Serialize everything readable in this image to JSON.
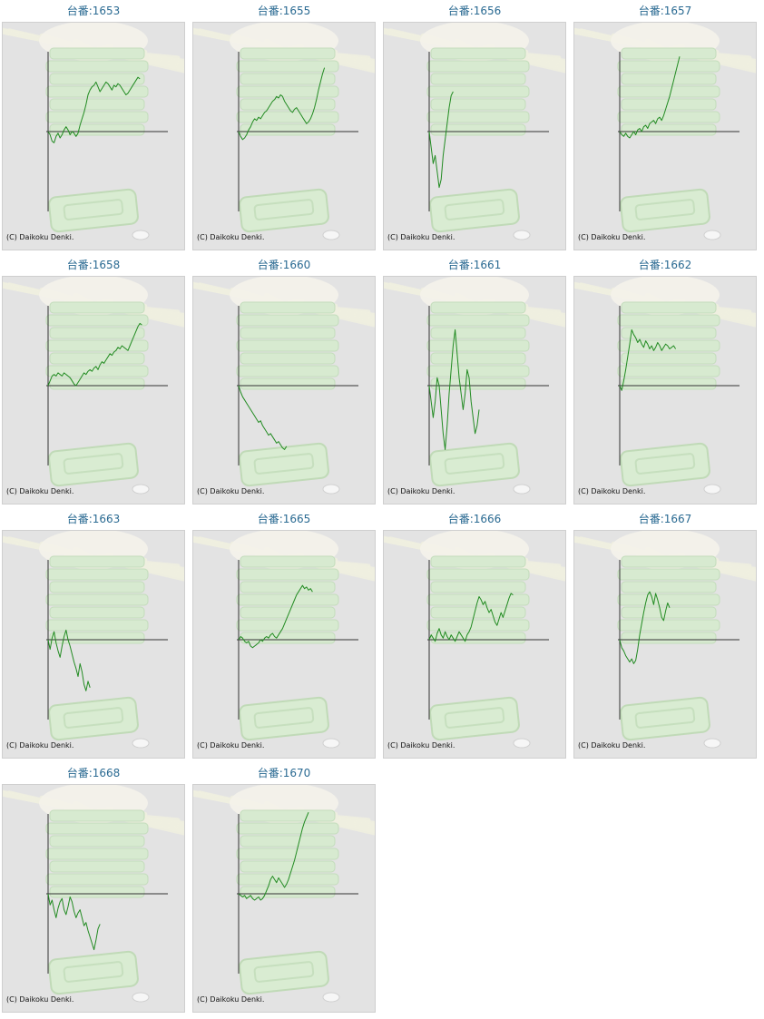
{
  "chart_data": [
    {
      "type": "line",
      "title": "台番:1653",
      "footer": "(C) Daikoku Denki.",
      "series": [
        {
          "color": "#228b22",
          "values": [
            0,
            -4,
            -12,
            -14,
            -6,
            -2,
            -8,
            -4,
            2,
            6,
            2,
            -4,
            0,
            -2,
            -6,
            -2,
            8,
            16,
            24,
            34,
            46,
            52,
            56,
            58,
            62,
            56,
            50,
            54,
            58,
            62,
            60,
            56,
            52,
            58,
            56,
            60,
            58,
            54,
            50,
            46,
            48,
            52,
            56,
            60,
            64,
            68,
            66
          ]
        }
      ]
    },
    {
      "type": "line",
      "title": "台番:1655",
      "footer": "(C) Daikoku Denki.",
      "series": [
        {
          "color": "#228b22",
          "values": [
            0,
            -6,
            -10,
            -8,
            -4,
            2,
            6,
            12,
            16,
            14,
            18,
            16,
            20,
            24,
            26,
            30,
            34,
            38,
            40,
            44,
            42,
            46,
            44,
            38,
            34,
            30,
            26,
            24,
            28,
            30,
            26,
            22,
            18,
            14,
            10,
            12,
            16,
            22,
            30,
            40,
            52,
            62,
            72,
            80
          ]
        }
      ]
    },
    {
      "type": "line",
      "title": "台番:1656",
      "footer": "(C) Daikoku Denki.",
      "series": [
        {
          "color": "#228b22",
          "values": [
            0,
            -20,
            -40,
            -30,
            -50,
            -70,
            -60,
            -30,
            -10,
            10,
            30,
            45,
            50
          ]
        }
      ]
    },
    {
      "type": "line",
      "title": "台番:1657",
      "footer": "(C) Daikoku Denki.",
      "series": [
        {
          "color": "#228b22",
          "values": [
            0,
            -4,
            -6,
            -2,
            -6,
            -8,
            -4,
            0,
            -4,
            2,
            4,
            0,
            6,
            8,
            4,
            10,
            12,
            14,
            10,
            16,
            18,
            14,
            20,
            28,
            36,
            44,
            54,
            64,
            74,
            84,
            94
          ]
        }
      ]
    },
    {
      "type": "line",
      "title": "台番:1658",
      "footer": "(C) Daikoku Denki.",
      "series": [
        {
          "color": "#228b22",
          "values": [
            0,
            6,
            12,
            14,
            12,
            16,
            14,
            12,
            16,
            14,
            12,
            10,
            6,
            2,
            0,
            4,
            8,
            12,
            16,
            14,
            18,
            20,
            18,
            22,
            24,
            20,
            26,
            30,
            28,
            32,
            36,
            40,
            38,
            42,
            44,
            48,
            46,
            50,
            48,
            46,
            44,
            50,
            56,
            62,
            68,
            74,
            78,
            76
          ]
        }
      ]
    },
    {
      "type": "line",
      "title": "台番:1660",
      "footer": "(C) Daikoku Denki.",
      "series": [
        {
          "color": "#228b22",
          "values": [
            0,
            -8,
            -14,
            -18,
            -22,
            -26,
            -30,
            -34,
            -38,
            -42,
            -46,
            -44,
            -50,
            -54,
            -58,
            -62,
            -60,
            -64,
            -68,
            -72,
            -70,
            -74,
            -78,
            -80,
            -76
          ]
        }
      ]
    },
    {
      "type": "line",
      "title": "台番:1661",
      "footer": "(C) Daikoku Denki.",
      "series": [
        {
          "color": "#228b22",
          "values": [
            0,
            -20,
            -40,
            -20,
            10,
            0,
            -30,
            -60,
            -80,
            -50,
            -10,
            20,
            50,
            70,
            40,
            10,
            -10,
            -30,
            -10,
            20,
            10,
            -20,
            -40,
            -60,
            -50,
            -30
          ]
        }
      ]
    },
    {
      "type": "line",
      "title": "台番:1662",
      "footer": "(C) Daikoku Denki.",
      "series": [
        {
          "color": "#228b22",
          "values": [
            0,
            -6,
            6,
            20,
            36,
            52,
            70,
            64,
            60,
            54,
            58,
            52,
            48,
            56,
            52,
            46,
            50,
            44,
            48,
            54,
            50,
            44,
            48,
            52,
            50,
            46,
            48,
            50,
            46
          ]
        }
      ]
    },
    {
      "type": "line",
      "title": "台番:1663",
      "footer": "(C) Daikoku Denki.",
      "series": [
        {
          "color": "#228b22",
          "values": [
            0,
            -12,
            2,
            10,
            -4,
            -14,
            -22,
            -8,
            4,
            12,
            0,
            -8,
            -18,
            -28,
            -36,
            -46,
            -30,
            -40,
            -56,
            -64,
            -52,
            -60
          ]
        }
      ]
    },
    {
      "type": "line",
      "title": "台番:1665",
      "footer": "(C) Daikoku Denki.",
      "series": [
        {
          "color": "#228b22",
          "values": [
            0,
            4,
            2,
            -2,
            -4,
            -2,
            -8,
            -10,
            -8,
            -6,
            -4,
            0,
            -2,
            2,
            4,
            2,
            6,
            8,
            4,
            2,
            6,
            10,
            14,
            20,
            26,
            32,
            38,
            44,
            50,
            56,
            60,
            64,
            68,
            64,
            66,
            62,
            64,
            60
          ]
        }
      ]
    },
    {
      "type": "line",
      "title": "台番:1666",
      "footer": "(C) Daikoku Denki.",
      "series": [
        {
          "color": "#228b22",
          "values": [
            0,
            6,
            2,
            -2,
            8,
            14,
            6,
            2,
            10,
            4,
            0,
            6,
            2,
            -2,
            4,
            10,
            6,
            2,
            -2,
            6,
            10,
            16,
            26,
            36,
            46,
            54,
            50,
            44,
            48,
            40,
            34,
            38,
            30,
            22,
            18,
            26,
            34,
            28,
            36,
            44,
            52,
            58,
            56
          ]
        }
      ]
    },
    {
      "type": "line",
      "title": "台番:1667",
      "footer": "(C) Daikoku Denki.",
      "series": [
        {
          "color": "#228b22",
          "values": [
            0,
            -10,
            -14,
            -20,
            -24,
            -28,
            -24,
            -30,
            -26,
            -12,
            6,
            20,
            34,
            46,
            56,
            60,
            54,
            44,
            58,
            50,
            40,
            28,
            24,
            36,
            46,
            40
          ]
        }
      ]
    },
    {
      "type": "line",
      "title": "台番:1668",
      "footer": "(C) Daikoku Denki.",
      "series": [
        {
          "color": "#228b22",
          "values": [
            0,
            -14,
            -8,
            -20,
            -30,
            -18,
            -10,
            -6,
            -20,
            -26,
            -16,
            -4,
            -10,
            -22,
            -30,
            -24,
            -20,
            -30,
            -40,
            -36,
            -46,
            -54,
            -62,
            -70,
            -58,
            -44,
            -38
          ]
        }
      ]
    },
    {
      "type": "line",
      "title": "台番:1670",
      "footer": "(C) Daikoku Denki.",
      "series": [
        {
          "color": "#228b22",
          "values": [
            0,
            -2,
            -4,
            -2,
            -6,
            -4,
            -2,
            -6,
            -8,
            -6,
            -4,
            -8,
            -6,
            -2,
            4,
            10,
            18,
            22,
            18,
            14,
            20,
            16,
            12,
            8,
            12,
            18,
            26,
            34,
            42,
            52,
            62,
            72,
            82,
            90,
            96,
            102
          ]
        }
      ]
    }
  ]
}
